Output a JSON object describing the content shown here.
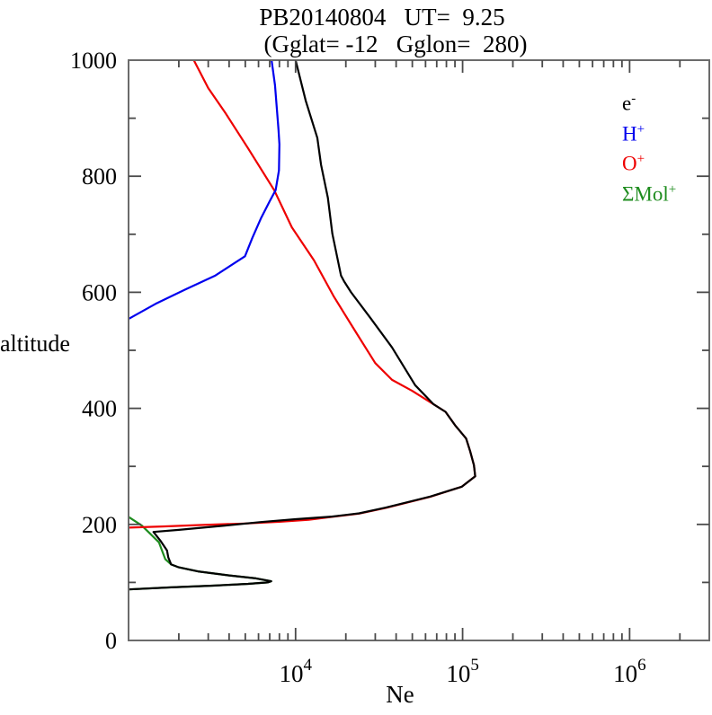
{
  "title": {
    "line1": "PB20140804   UT=  9.25",
    "line2": "(Gglat= -12   Gglon=  280)"
  },
  "legend": [
    {
      "base": "e",
      "sup": "-",
      "color": "#000000"
    },
    {
      "base": "H",
      "sup": "+",
      "color": "#0000ee"
    },
    {
      "base": "O",
      "sup": "+",
      "color": "#ee0000"
    },
    {
      "base": "ΣMol",
      "sup": "+",
      "color": "#1e8c1e"
    }
  ],
  "chart_data": {
    "type": "line",
    "title": "PB20140804   UT=  9.25",
    "subtitle": "(Gglat= -12   Gglon=  280)",
    "xlabel": "Ne",
    "ylabel": "altitude",
    "x_scale": "log",
    "xlim": [
      1000,
      3000000
    ],
    "ylim": [
      0,
      1000
    ],
    "x_major_tick_exponents": [
      4,
      5,
      6
    ],
    "x_minor_tick_mantissas": [
      2,
      3,
      4,
      5,
      6,
      7,
      8,
      9
    ],
    "y_major_ticks": [
      0,
      200,
      400,
      600,
      800,
      1000
    ],
    "y_minor_ticks": [
      100,
      300,
      500,
      700,
      900
    ],
    "grid": false,
    "legend_position": "upper right",
    "frame_color": "#6b6b6b",
    "tick_color": "#4a4a4a",
    "series": [
      {
        "name": "e-",
        "color": "#000000",
        "points": [
          [
            1000,
            88
          ],
          [
            1800,
            91.5
          ],
          [
            3200,
            94.5
          ],
          [
            5200,
            97.5
          ],
          [
            6800,
            100
          ],
          [
            7150,
            102
          ],
          [
            5800,
            107
          ],
          [
            4000,
            112
          ],
          [
            2600,
            119
          ],
          [
            2000,
            126
          ],
          [
            1800,
            131
          ],
          [
            1730,
            143
          ],
          [
            1700,
            155
          ],
          [
            1550,
            172
          ],
          [
            1410,
            187
          ],
          [
            2000,
            190.5
          ],
          [
            3780,
            198
          ],
          [
            6200,
            204
          ],
          [
            10000,
            209
          ],
          [
            16500,
            213.5
          ],
          [
            24000,
            219
          ],
          [
            34700,
            229
          ],
          [
            64000,
            248
          ],
          [
            99000,
            265
          ],
          [
            119000,
            283
          ],
          [
            117000,
            302
          ],
          [
            111000,
            326
          ],
          [
            105000,
            348
          ],
          [
            90000,
            371
          ],
          [
            79000,
            394
          ],
          [
            67000,
            407
          ],
          [
            52000,
            440
          ],
          [
            37800,
            505
          ],
          [
            28000,
            556
          ],
          [
            21500,
            600
          ],
          [
            19500,
            619
          ],
          [
            18700,
            629
          ],
          [
            16600,
            701
          ],
          [
            15600,
            763
          ],
          [
            14200,
            820
          ],
          [
            13500,
            866
          ],
          [
            11500,
            930
          ],
          [
            10000,
            1000
          ]
        ]
      },
      {
        "name": "H+",
        "color": "#0000ee",
        "points": [
          [
            1000,
            554
          ],
          [
            1450,
            580
          ],
          [
            2190,
            605
          ],
          [
            3310,
            629
          ],
          [
            4980,
            662
          ],
          [
            5500,
            693
          ],
          [
            6190,
            727
          ],
          [
            7000,
            757
          ],
          [
            7600,
            776
          ],
          [
            7950,
            810
          ],
          [
            8000,
            855
          ],
          [
            7900,
            880
          ],
          [
            7530,
            957
          ],
          [
            7180,
            1000
          ]
        ]
      },
      {
        "name": "O+",
        "color": "#ee0000",
        "points": [
          [
            1000,
            194.5
          ],
          [
            1600,
            196.5
          ],
          [
            2800,
            199
          ],
          [
            5000,
            201.5
          ],
          [
            8000,
            204.5
          ],
          [
            12000,
            208
          ],
          [
            16500,
            213
          ],
          [
            24000,
            218.5
          ],
          [
            34700,
            228.5
          ],
          [
            64000,
            247.5
          ],
          [
            99000,
            265
          ],
          [
            119000,
            283
          ],
          [
            117000,
            302
          ],
          [
            111000,
            326
          ],
          [
            105000,
            348
          ],
          [
            90000,
            371
          ],
          [
            79000,
            394
          ],
          [
            67000,
            407
          ],
          [
            50000,
            430
          ],
          [
            37800,
            449
          ],
          [
            30000,
            478
          ],
          [
            23000,
            531
          ],
          [
            17000,
            592
          ],
          [
            12900,
            655
          ],
          [
            9500,
            712
          ],
          [
            7450,
            776
          ],
          [
            5200,
            848
          ],
          [
            3780,
            910
          ],
          [
            3000,
            952
          ],
          [
            2460,
            1000
          ]
        ]
      },
      {
        "name": "ΣMol+",
        "color": "#1e8c1e",
        "points": [
          [
            1000,
            213
          ],
          [
            1200,
            198
          ],
          [
            1390,
            180
          ],
          [
            1520,
            169
          ],
          [
            1600,
            152
          ],
          [
            1660,
            140
          ],
          [
            1800,
            131
          ],
          [
            2000,
            126
          ],
          [
            2600,
            119
          ],
          [
            4000,
            112
          ],
          [
            5800,
            107
          ],
          [
            7150,
            102
          ],
          [
            6800,
            100
          ],
          [
            5200,
            97.5
          ],
          [
            3200,
            94.5
          ],
          [
            1800,
            91.5
          ],
          [
            1000,
            88
          ]
        ]
      }
    ]
  }
}
